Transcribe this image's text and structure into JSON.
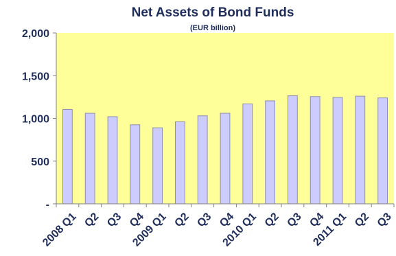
{
  "chart_data": {
    "type": "bar",
    "title": "Net Assets of Bond Funds",
    "subtitle": "(EUR billion)",
    "xlabel": "",
    "ylabel": "",
    "categories": [
      "2008 Q1",
      "Q2",
      "Q3",
      "Q4",
      "2009 Q1",
      "Q2",
      "Q3",
      "Q4",
      "2010 Q1",
      "Q2",
      "Q3",
      "Q4",
      "2011 Q1",
      "Q2",
      "Q3"
    ],
    "values": [
      1105,
      1060,
      1020,
      925,
      890,
      960,
      1030,
      1060,
      1170,
      1205,
      1265,
      1255,
      1245,
      1260,
      1240
    ],
    "ylim": [
      0,
      2000
    ],
    "yticks": [
      0,
      500,
      1000,
      1500,
      2000
    ],
    "ytick_labels": [
      "-",
      "500",
      "1,000",
      "1,500",
      "2,000"
    ],
    "grid": false,
    "legend": "none",
    "colors": {
      "plot_background": "#ffff99",
      "bar_fill": "#ccccff",
      "bar_stroke": "#8c8cb4",
      "text": "#1f2d5a",
      "axis": "#808080"
    }
  }
}
